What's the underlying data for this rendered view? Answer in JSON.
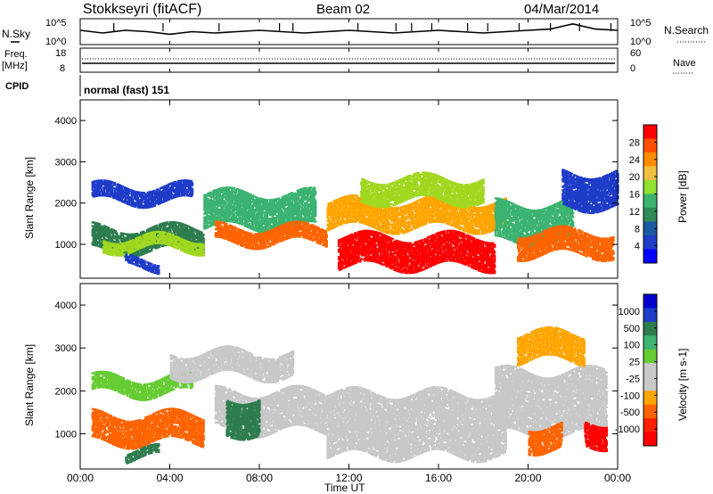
{
  "header": {
    "title": "Stokkseyri (fitACF)",
    "beam": "Beam 02",
    "date": "04/Mar/2014"
  },
  "status_panels": {
    "nsky_label": "N.Sky",
    "nsky_ticks": [
      "10^5",
      "10^0"
    ],
    "nsearch_label": "N.Search",
    "nsearch_ticks": [
      "10^5",
      "10^0"
    ],
    "freq_label": "Freq.",
    "freq_unit": "[MHz]",
    "freq_ticks": [
      "18",
      "8"
    ],
    "nave_label": "Nave",
    "nave_ticks": [
      "60",
      "0"
    ],
    "cpid_label": "CPID",
    "cpid_value": "normal (fast) 151"
  },
  "chart_data": [
    {
      "type": "heatmap",
      "parameter": "Power",
      "ylabel": "Slant Range [km]",
      "colorbar_label": "Power [dB]",
      "y_ticks": [
        "4000",
        "3000",
        "2000",
        "1000"
      ],
      "ylim": [
        180,
        4500
      ],
      "color_levels": [
        {
          "label": "28",
          "color": "#ff0000"
        },
        {
          "label": "24",
          "color": "#ff6400"
        },
        {
          "label": "20",
          "color": "#ffa500"
        },
        {
          "label": "16",
          "color": "#a0d820"
        },
        {
          "label": "12",
          "color": "#3cb371"
        },
        {
          "label": "8",
          "color": "#2e7d4f"
        },
        {
          "label": "4",
          "color": "#1e3cc8"
        }
      ],
      "colorbar_fills": [
        "#ff0000",
        "#ff5000",
        "#ff8c00",
        "#f0c040",
        "#90e030",
        "#3cb371",
        "#2e8b57",
        "#1a5aa0",
        "#1e3cc8",
        "#0000ff"
      ],
      "bands": [
        {
          "t_start": 0.5,
          "t_end": 5.0,
          "range_center": 2200,
          "half_width": 180,
          "color": "#1e3cc8"
        },
        {
          "t_start": 0.5,
          "t_end": 5.5,
          "range_center": 1100,
          "half_width": 280,
          "color": "#2e7d4f"
        },
        {
          "t_start": 1.0,
          "t_end": 5.5,
          "range_center": 1000,
          "half_width": 120,
          "color": "#a0d820"
        },
        {
          "t_start": 5.5,
          "t_end": 10.5,
          "range_center": 1800,
          "half_width": 400,
          "color": "#3cb371"
        },
        {
          "t_start": 6.0,
          "t_end": 11.0,
          "range_center": 1200,
          "half_width": 200,
          "color": "#ff6400"
        },
        {
          "t_start": 11.5,
          "t_end": 18.5,
          "range_center": 800,
          "half_width": 350,
          "color": "#ff0000"
        },
        {
          "t_start": 11.0,
          "t_end": 19.0,
          "range_center": 1700,
          "half_width": 300,
          "color": "#ffa500"
        },
        {
          "t_start": 12.5,
          "t_end": 18.0,
          "range_center": 2300,
          "half_width": 250,
          "color": "#a0d820"
        },
        {
          "t_start": 18.5,
          "t_end": 22.0,
          "range_center": 1500,
          "half_width": 450,
          "color": "#3cb371"
        },
        {
          "t_start": 19.5,
          "t_end": 23.8,
          "range_center": 1000,
          "half_width": 250,
          "color": "#ff6400"
        },
        {
          "t_start": 21.5,
          "t_end": 24.0,
          "range_center": 2300,
          "half_width": 400,
          "color": "#1e3cc8"
        },
        {
          "t_start": 2.0,
          "t_end": 3.5,
          "range_center": 500,
          "half_width": 80,
          "color": "#1e3cc8"
        }
      ]
    },
    {
      "type": "heatmap",
      "parameter": "Velocity",
      "ylabel": "Slant Range [km]",
      "colorbar_label": "Velocity [m s-1]",
      "y_ticks": [
        "4000",
        "3000",
        "2000",
        "1000"
      ],
      "ylim": [
        180,
        4500
      ],
      "color_levels": [
        {
          "label": "1000",
          "color": "#1e3cc8"
        },
        {
          "label": "500",
          "color": "#2e7d4f"
        },
        {
          "label": "100",
          "color": "#66cc33"
        },
        {
          "label": "25",
          "color": "#c8c8c8"
        },
        {
          "label": "-25",
          "color": "#c8c8c8"
        },
        {
          "label": "-100",
          "color": "#ffa500"
        },
        {
          "label": "-500",
          "color": "#ff6400"
        },
        {
          "label": "-1000",
          "color": "#ff0000"
        }
      ],
      "colorbar_fills": [
        "#0000cd",
        "#1e3cc8",
        "#2e7d4f",
        "#3cb371",
        "#66cc33",
        "#c8c8c8",
        "#c8c8c8",
        "#ffa500",
        "#ff6400",
        "#ff2000",
        "#ff0000"
      ],
      "bands": [
        {
          "t_start": 0.5,
          "t_end": 5.0,
          "range_center": 2100,
          "half_width": 200,
          "color": "#66cc33"
        },
        {
          "t_start": 0.5,
          "t_end": 5.5,
          "range_center": 1100,
          "half_width": 300,
          "color": "#ff6400"
        },
        {
          "t_start": 2.0,
          "t_end": 3.5,
          "range_center": 500,
          "half_width": 80,
          "color": "#2e7d4f"
        },
        {
          "t_start": 4.0,
          "t_end": 9.5,
          "range_center": 2600,
          "half_width": 250,
          "color": "#c8c8c8"
        },
        {
          "t_start": 6.0,
          "t_end": 11.0,
          "range_center": 1500,
          "half_width": 450,
          "color": "#c8c8c8"
        },
        {
          "t_start": 6.5,
          "t_end": 8.0,
          "range_center": 1400,
          "half_width": 400,
          "color": "#2e7d4f"
        },
        {
          "t_start": 11.0,
          "t_end": 19.0,
          "range_center": 1200,
          "half_width": 700,
          "color": "#c8c8c8"
        },
        {
          "t_start": 18.5,
          "t_end": 23.5,
          "range_center": 1700,
          "half_width": 700,
          "color": "#c8c8c8"
        },
        {
          "t_start": 20.0,
          "t_end": 21.5,
          "range_center": 900,
          "half_width": 250,
          "color": "#ff6400"
        },
        {
          "t_start": 22.5,
          "t_end": 23.5,
          "range_center": 1000,
          "half_width": 250,
          "color": "#ff0000"
        },
        {
          "t_start": 19.5,
          "t_end": 22.5,
          "range_center": 3000,
          "half_width": 300,
          "color": "#ffa500"
        }
      ]
    }
  ],
  "x_axis": {
    "label": "Time UT",
    "ticks": [
      "00:00",
      "04:00",
      "08:00",
      "12:00",
      "16:00",
      "20:00",
      "00:00"
    ],
    "xlim_hours": [
      0,
      24
    ]
  },
  "noise_series": {
    "nsky": [
      0.55,
      0.45,
      0.55,
      0.5,
      0.4,
      0.5,
      0.45,
      0.5,
      0.55,
      0.5,
      0.45,
      0.5,
      0.55,
      0.5,
      0.45,
      0.5,
      0.55,
      0.5,
      0.45,
      0.5,
      0.55,
      0.6,
      0.8,
      0.6,
      0.55
    ],
    "nsearch_spikes_hours": [
      1.5,
      3.7,
      6.2,
      8.9,
      9.5,
      12.4,
      14.1,
      14.8,
      15.7,
      17.3,
      18.2,
      19.6,
      21.0,
      22.3,
      23.7
    ]
  }
}
